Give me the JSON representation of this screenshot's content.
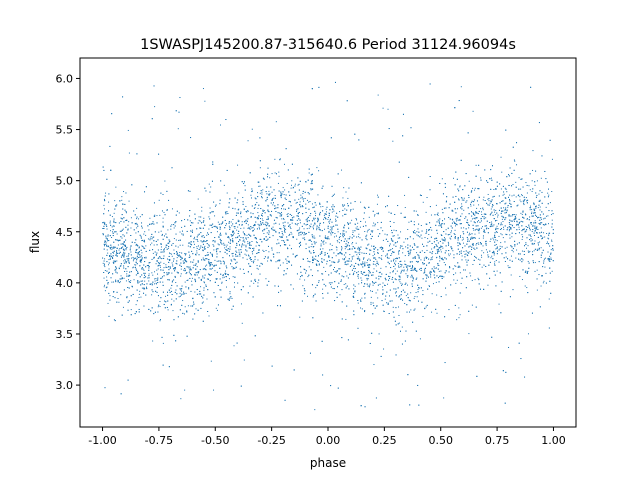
{
  "chart_data": {
    "type": "scatter",
    "title": "1SWASPJ145200.87-315640.6 Period 31124.96094s",
    "xlabel": "phase",
    "ylabel": "flux",
    "xlim": [
      -1.1,
      1.1
    ],
    "ylim": [
      2.59,
      6.2
    ],
    "xticks": [
      "-1.00",
      "-0.75",
      "-0.50",
      "-0.25",
      "0.00",
      "0.25",
      "0.50",
      "0.75",
      "1.00"
    ],
    "xtick_values": [
      -1.0,
      -0.75,
      -0.5,
      -0.25,
      0.0,
      0.25,
      0.5,
      0.75,
      1.0
    ],
    "yticks": [
      "3.0",
      "3.5",
      "4.0",
      "4.5",
      "5.0",
      "5.5",
      "6.0"
    ],
    "ytick_values": [
      3.0,
      3.5,
      4.0,
      4.5,
      5.0,
      5.5,
      6.0
    ],
    "grid": false,
    "marker_color": "#1f77b4",
    "x_range_of_points": [
      -1.0,
      1.0
    ],
    "binned_trend": {
      "phase": [
        -1.0,
        -0.875,
        -0.75,
        -0.625,
        -0.5,
        -0.375,
        -0.25,
        -0.125,
        0.0,
        0.125,
        0.25,
        0.375,
        0.5,
        0.625,
        0.75,
        0.875,
        1.0
      ],
      "flux": [
        4.35,
        4.28,
        4.2,
        4.2,
        4.3,
        4.45,
        4.58,
        4.58,
        4.38,
        4.25,
        4.2,
        4.22,
        4.32,
        4.48,
        4.58,
        4.58,
        4.45
      ]
    },
    "scatter_sd": 0.27,
    "outlier_range": [
      2.75,
      6.0
    ]
  }
}
